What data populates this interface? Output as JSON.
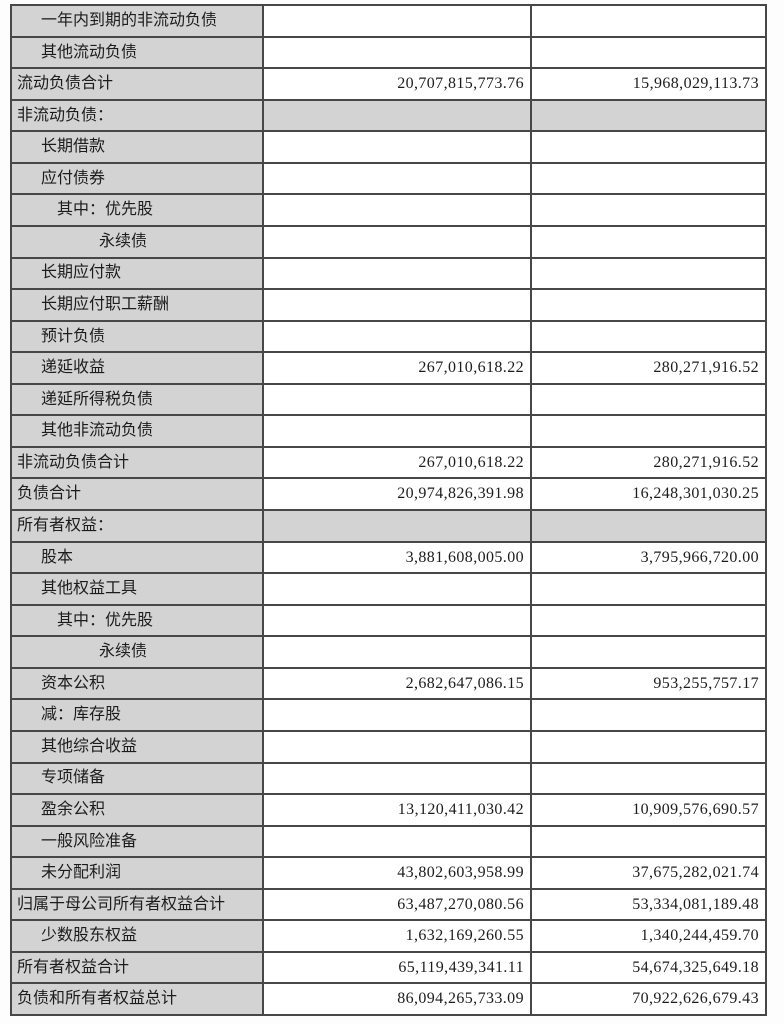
{
  "colors": {
    "shaded_cell": "#d3d3d3",
    "border": "#474747",
    "text": "#1c1c1c",
    "background": "#ffffff"
  },
  "table": {
    "rows": [
      {
        "label": "一年内到期的非流动负债",
        "indent": 1,
        "section": false,
        "values": [
          "",
          ""
        ]
      },
      {
        "label": "其他流动负债",
        "indent": 1,
        "section": false,
        "values": [
          "",
          ""
        ]
      },
      {
        "label": "流动负债合计",
        "indent": 0,
        "section": false,
        "values": [
          "20,707,815,773.76",
          "15,968,029,113.73"
        ]
      },
      {
        "label": "非流动负债：",
        "indent": 0,
        "section": true,
        "values": [
          "",
          ""
        ]
      },
      {
        "label": "长期借款",
        "indent": 1,
        "section": false,
        "values": [
          "",
          ""
        ]
      },
      {
        "label": "应付债券",
        "indent": 1,
        "section": false,
        "values": [
          "",
          ""
        ]
      },
      {
        "label": "其中：优先股",
        "indent": 2,
        "section": false,
        "values": [
          "",
          ""
        ]
      },
      {
        "label": "永续债",
        "indent": 3,
        "section": false,
        "values": [
          "",
          ""
        ]
      },
      {
        "label": "长期应付款",
        "indent": 1,
        "section": false,
        "values": [
          "",
          ""
        ]
      },
      {
        "label": "长期应付职工薪酬",
        "indent": 1,
        "section": false,
        "values": [
          "",
          ""
        ]
      },
      {
        "label": "预计负债",
        "indent": 1,
        "section": false,
        "values": [
          "",
          ""
        ]
      },
      {
        "label": "递延收益",
        "indent": 1,
        "section": false,
        "values": [
          "267,010,618.22",
          "280,271,916.52"
        ]
      },
      {
        "label": "递延所得税负债",
        "indent": 1,
        "section": false,
        "values": [
          "",
          ""
        ]
      },
      {
        "label": "其他非流动负债",
        "indent": 1,
        "section": false,
        "values": [
          "",
          ""
        ]
      },
      {
        "label": "非流动负债合计",
        "indent": 0,
        "section": false,
        "values": [
          "267,010,618.22",
          "280,271,916.52"
        ]
      },
      {
        "label": "负债合计",
        "indent": 0,
        "section": false,
        "values": [
          "20,974,826,391.98",
          "16,248,301,030.25"
        ]
      },
      {
        "label": "所有者权益：",
        "indent": 0,
        "section": true,
        "values": [
          "",
          ""
        ]
      },
      {
        "label": "股本",
        "indent": 1,
        "section": false,
        "values": [
          "3,881,608,005.00",
          "3,795,966,720.00"
        ]
      },
      {
        "label": "其他权益工具",
        "indent": 1,
        "section": false,
        "values": [
          "",
          ""
        ]
      },
      {
        "label": "其中：优先股",
        "indent": 2,
        "section": false,
        "values": [
          "",
          ""
        ]
      },
      {
        "label": "永续债",
        "indent": 3,
        "section": false,
        "values": [
          "",
          ""
        ]
      },
      {
        "label": "资本公积",
        "indent": 1,
        "section": false,
        "values": [
          "2,682,647,086.15",
          "953,255,757.17"
        ]
      },
      {
        "label": "减：库存股",
        "indent": 1,
        "section": false,
        "values": [
          "",
          ""
        ]
      },
      {
        "label": "其他综合收益",
        "indent": 1,
        "section": false,
        "values": [
          "",
          ""
        ]
      },
      {
        "label": "专项储备",
        "indent": 1,
        "section": false,
        "values": [
          "",
          ""
        ]
      },
      {
        "label": "盈余公积",
        "indent": 1,
        "section": false,
        "values": [
          "13,120,411,030.42",
          "10,909,576,690.57"
        ]
      },
      {
        "label": "一般风险准备",
        "indent": 1,
        "section": false,
        "values": [
          "",
          ""
        ]
      },
      {
        "label": "未分配利润",
        "indent": 1,
        "section": false,
        "values": [
          "43,802,603,958.99",
          "37,675,282,021.74"
        ]
      },
      {
        "label": "归属于母公司所有者权益合计",
        "indent": 0,
        "section": false,
        "values": [
          "63,487,270,080.56",
          "53,334,081,189.48"
        ]
      },
      {
        "label": "少数股东权益",
        "indent": 1,
        "section": false,
        "values": [
          "1,632,169,260.55",
          "1,340,244,459.70"
        ]
      },
      {
        "label": "所有者权益合计",
        "indent": 0,
        "section": false,
        "values": [
          "65,119,439,341.11",
          "54,674,325,649.18"
        ]
      },
      {
        "label": "负债和所有者权益总计",
        "indent": 0,
        "section": false,
        "values": [
          "86,094,265,733.09",
          "70,922,626,679.43"
        ]
      }
    ]
  }
}
